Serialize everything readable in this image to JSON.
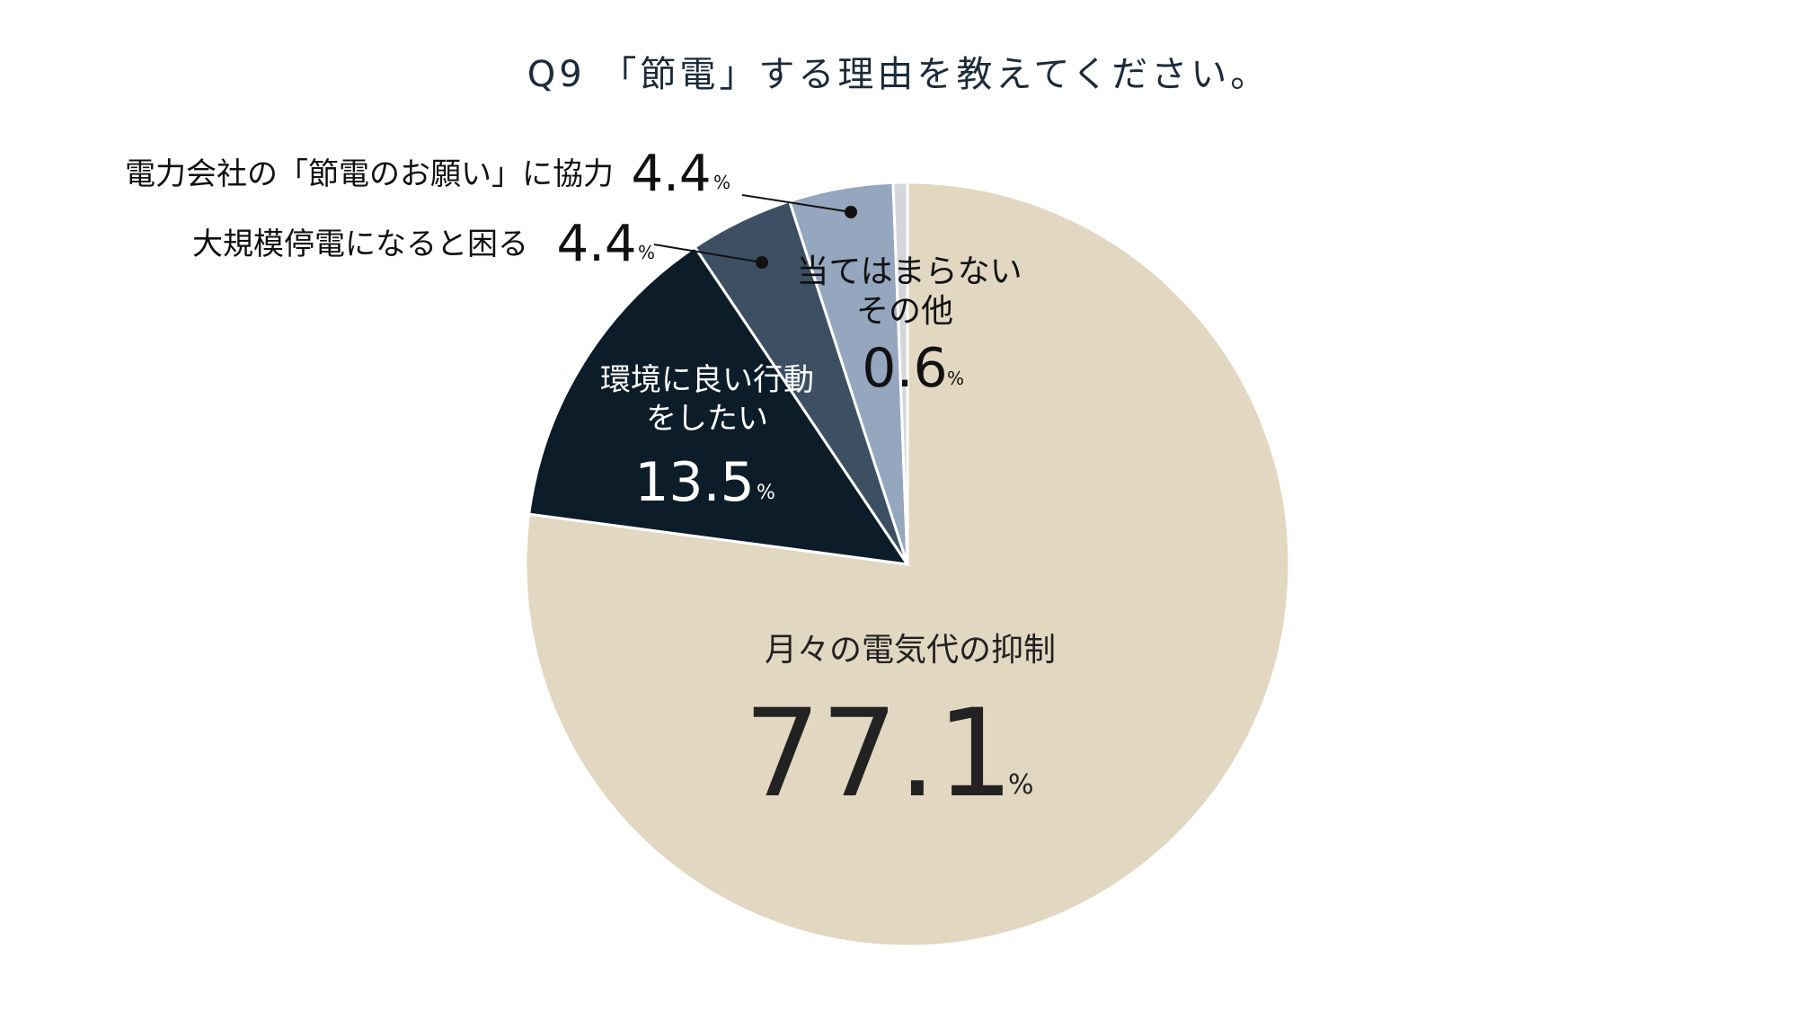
{
  "chart_data": {
    "type": "pie",
    "title": "Q9 「節電」する理由を教えてください。",
    "unit": "%",
    "start_angle_deg": 0,
    "direction": "clockwise",
    "slices": [
      {
        "label": "月々の電気代の抑制",
        "value": 77.1,
        "value_text": "77.1",
        "color": "#e2d7c1",
        "text_color": "#222222"
      },
      {
        "label": "環境に良い行動をしたい",
        "label_lines": [
          "環境に良い行動",
          "をしたい"
        ],
        "value": 13.5,
        "value_text": "13.5",
        "color": "#0c1c29",
        "text_color": "#ffffff"
      },
      {
        "label": "大規模停電になると困る",
        "value": 4.4,
        "value_text": "4.4",
        "color": "#3d4f63",
        "text_color": "#111111"
      },
      {
        "label": "電力会社の「節電のお願い」に協力",
        "value": 4.4,
        "value_text": "4.4",
        "color": "#95a6bf",
        "text_color": "#111111"
      },
      {
        "label": "当てはまらない",
        "value": 0.0,
        "value_text": "",
        "color": "#95a6bf",
        "text_color": "#111111"
      },
      {
        "label": "その他",
        "value": 0.6,
        "value_text": "0.6",
        "color": "#d4d6da",
        "text_color": "#111111"
      }
    ]
  }
}
